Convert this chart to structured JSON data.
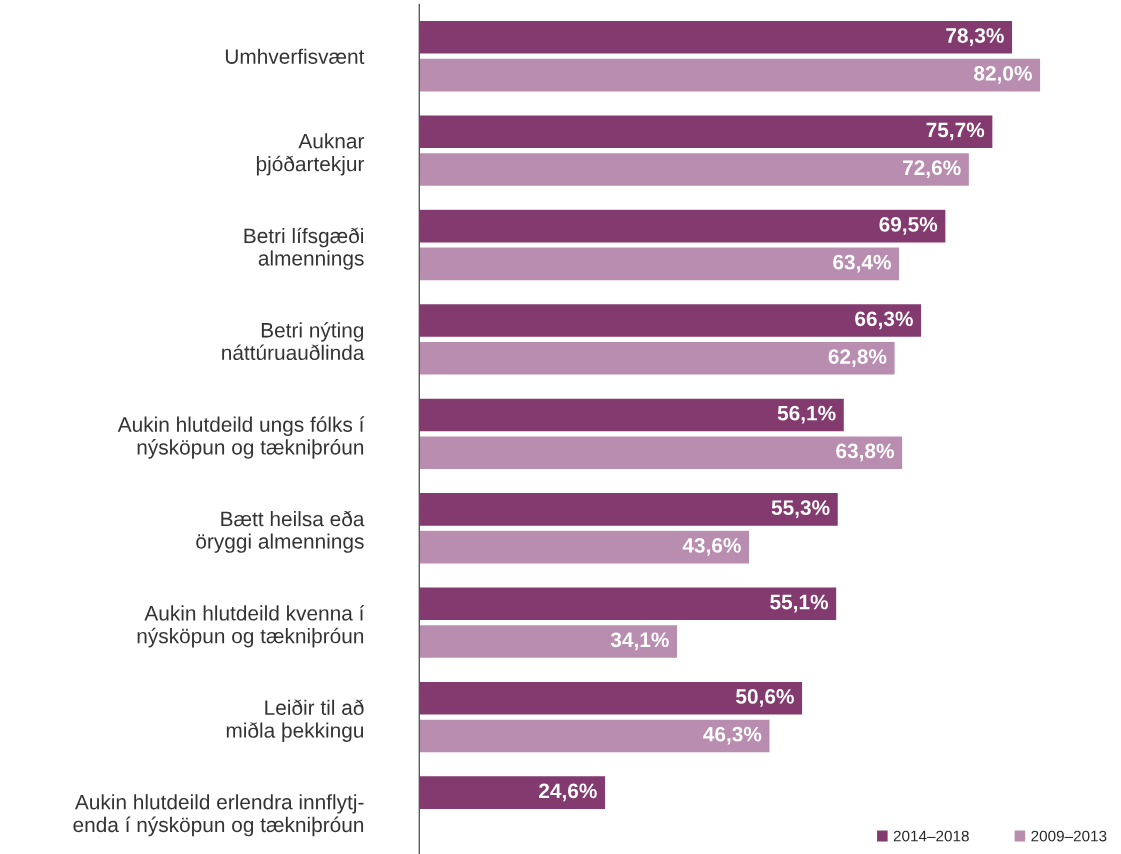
{
  "chart_data": {
    "type": "bar",
    "orientation": "horizontal",
    "categories": [
      "Umhverfisvænt",
      "Auknar\nþjóðartekjur",
      "Betri lífsgæði\nalmennings",
      "Betri nýting\nnáttúruauðlinda",
      "Aukin hlutdeild ungs fólks í\nnýsköpun og tækniþróun",
      "Bætt heilsa eða\nöryggi almennings",
      "Aukin hlutdeild kvenna í\nnýsköpun og tækniþróun",
      "Leiðir til að\nmiðla þekkingu",
      "Aukin hlutdeild erlendra innflytj-\nenda í nýsköpun og tækniþróun"
    ],
    "series": [
      {
        "name": "2014–2018",
        "color": "#833a6f",
        "values": [
          78.3,
          75.7,
          69.5,
          66.3,
          56.1,
          55.3,
          55.1,
          50.6,
          24.6
        ],
        "value_labels": [
          "78,3%",
          "75,7%",
          "69,5%",
          "66,3%",
          "56,1%",
          "55,3%",
          "55,1%",
          "50,6%",
          "24,6%"
        ]
      },
      {
        "name": "2009–2013",
        "color": "#b88db0",
        "values": [
          82.0,
          72.6,
          63.4,
          62.8,
          63.8,
          43.6,
          34.1,
          46.3,
          null
        ],
        "value_labels": [
          "82,0%",
          "72,6%",
          "63,4%",
          "62,8%",
          "63,8%",
          "43,6%",
          "34,1%",
          "46,3%",
          null
        ]
      }
    ],
    "tick_labels": "y",
    "grid": false,
    "legend": "bottom right"
  }
}
